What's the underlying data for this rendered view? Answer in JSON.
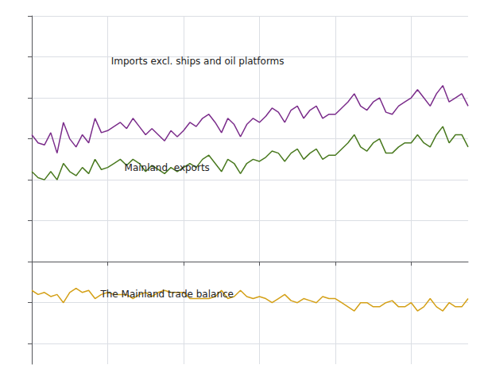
{
  "chart_data": {
    "type": "line",
    "annotations": [
      "Imports excl. ships and oil platforms",
      "Mainland  exports",
      "The Mainland trade balance"
    ],
    "x": [
      0,
      1,
      2,
      3,
      4,
      5,
      6,
      7,
      8,
      9,
      10,
      11,
      12,
      13,
      14,
      15,
      16,
      17,
      18,
      19,
      20,
      21,
      22,
      23,
      24,
      25,
      26,
      27,
      28,
      29,
      30,
      31,
      32,
      33,
      34,
      35,
      36,
      37,
      38,
      39,
      40,
      41,
      42,
      43,
      44,
      45,
      46,
      47,
      48,
      49,
      50,
      51,
      52,
      53,
      54,
      55,
      56,
      57,
      58,
      59,
      60,
      61,
      62,
      63,
      64,
      65,
      66,
      67,
      68,
      69
    ],
    "series": [
      {
        "color": "#7b2d8b",
        "values": [
          62,
          58,
          57,
          63,
          53,
          68,
          60,
          56,
          62,
          58,
          70,
          63,
          64,
          66,
          68,
          65,
          70,
          66,
          62,
          65,
          62,
          59,
          64,
          61,
          64,
          68,
          66,
          70,
          72,
          68,
          63,
          70,
          67,
          61,
          67,
          70,
          68,
          71,
          75,
          73,
          68,
          74,
          76,
          70,
          74,
          76,
          70,
          72,
          72,
          75,
          78,
          82,
          76,
          74,
          78,
          80,
          73,
          72,
          76,
          78,
          80,
          84,
          80,
          76,
          82,
          86,
          78,
          80,
          82,
          76
        ]
      },
      {
        "color": "#4a7a20",
        "values": [
          44,
          41,
          40,
          44,
          40,
          48,
          44,
          42,
          46,
          43,
          50,
          45,
          46,
          48,
          50,
          47,
          50,
          48,
          44,
          47,
          45,
          43,
          46,
          44,
          46,
          48,
          46,
          50,
          52,
          48,
          44,
          50,
          48,
          43,
          48,
          50,
          49,
          51,
          54,
          53,
          49,
          53,
          55,
          50,
          53,
          55,
          50,
          52,
          52,
          55,
          58,
          62,
          56,
          54,
          58,
          60,
          53,
          53,
          56,
          58,
          58,
          62,
          58,
          56,
          62,
          66,
          58,
          62,
          62,
          56
        ]
      },
      {
        "color": "#d4a017",
        "values": [
          -14,
          -16,
          -15,
          -17,
          -16,
          -20,
          -15,
          -13,
          -15,
          -14,
          -18,
          -16,
          -15,
          -16,
          -16,
          -16,
          -18,
          -16,
          -15,
          -17,
          -15,
          -14,
          -15,
          -15,
          -15,
          -18,
          -18,
          -18,
          -18,
          -17,
          -14,
          -18,
          -17,
          -14,
          -17,
          -18,
          -17,
          -18,
          -20,
          -18,
          -16,
          -19,
          -20,
          -18,
          -19,
          -20,
          -17,
          -18,
          -18,
          -20,
          -22,
          -24,
          -20,
          -20,
          -22,
          -22,
          -20,
          -19,
          -22,
          -22,
          -20,
          -24,
          -22,
          -18,
          -22,
          -24,
          -20,
          -22,
          -22,
          -18
        ]
      }
    ],
    "xlim": [
      0,
      69
    ],
    "xticks": [
      0,
      12,
      24,
      36,
      48,
      60
    ],
    "ylim": [
      -50,
      120
    ],
    "yticks": [
      -40,
      -20,
      0,
      20,
      40,
      60,
      80,
      100,
      120
    ],
    "grid": true,
    "tick_labels": false
  }
}
